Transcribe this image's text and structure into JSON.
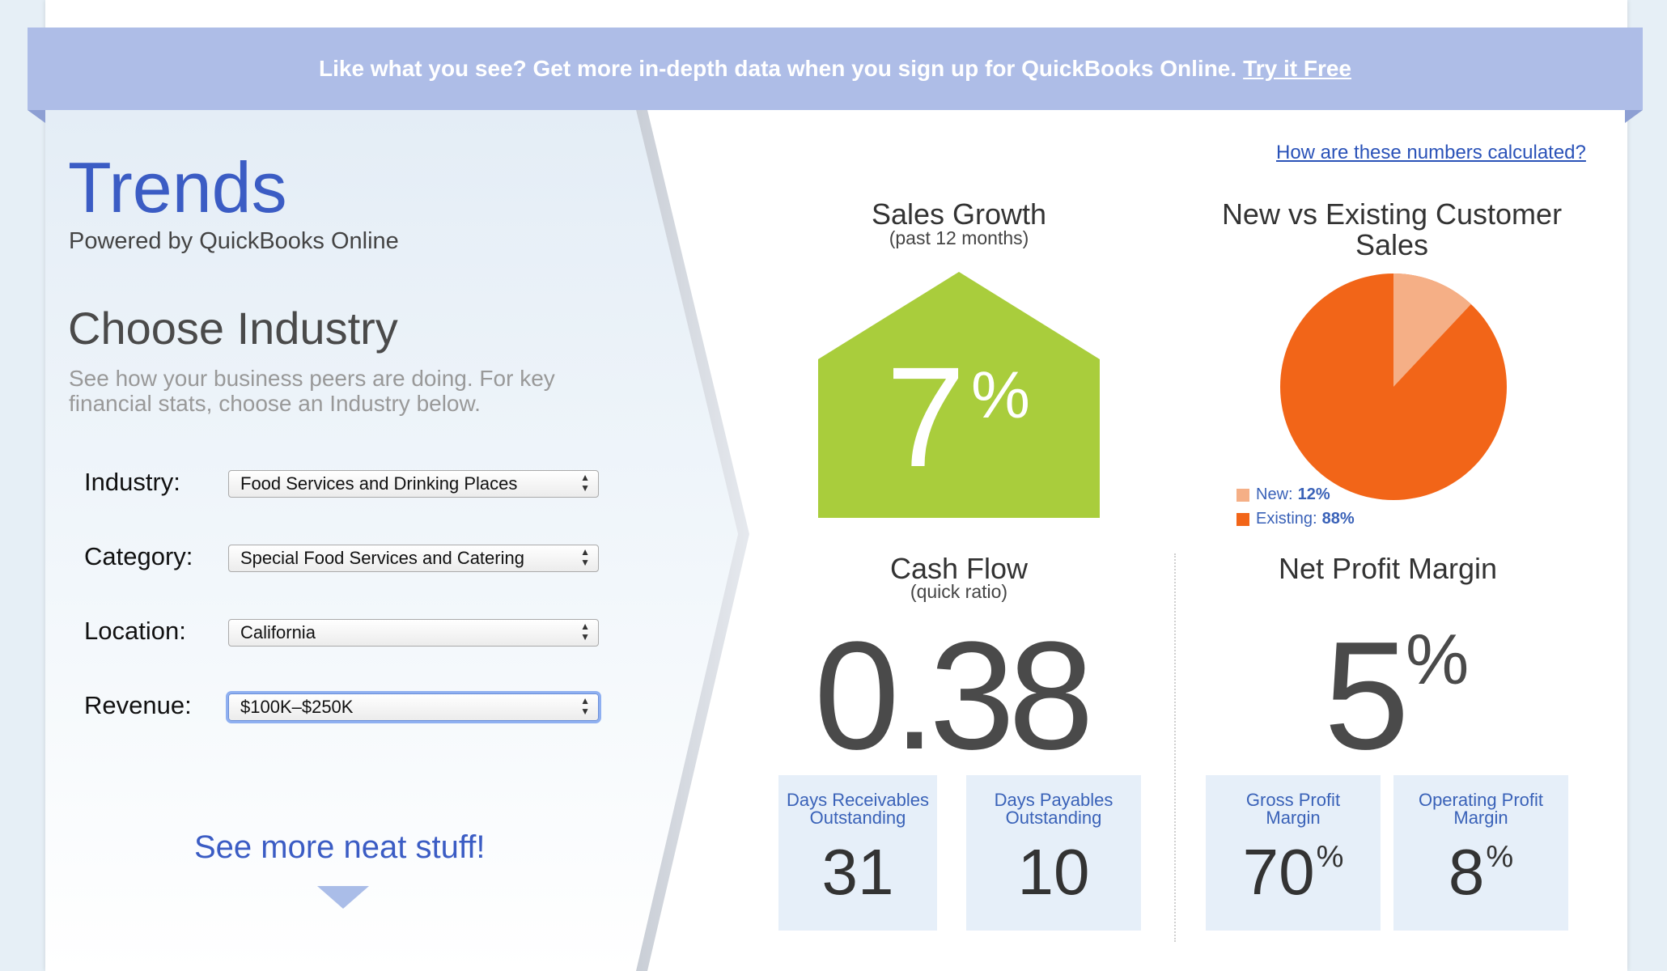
{
  "banner": {
    "text": "Like what you see? Get more in-depth data when you sign up for QuickBooks Online.",
    "link": "Try it Free",
    "color": "#aebde7"
  },
  "sidebar": {
    "title": "Trends",
    "subtitle": "Powered by QuickBooks Online",
    "choose_heading": "Choose Industry",
    "choose_desc": "See how your business peers are doing. For key financial stats, choose an Industry below.",
    "fields": [
      {
        "label": "Industry:",
        "value": "Food Services and Drinking Places"
      },
      {
        "label": "Category:",
        "value": "Special Food Services and Catering"
      },
      {
        "label": "Location:",
        "value": "California"
      },
      {
        "label": "Revenue:",
        "value": "$100K–$250K"
      }
    ],
    "see_more": "See more neat stuff!"
  },
  "calc_link": "How are these numbers calculated?",
  "sales_growth": {
    "title": "Sales Growth",
    "sub": "(past 12 months)",
    "value": "7",
    "unit": "%",
    "color": "#a9cd3c"
  },
  "customer_sales": {
    "title_line1": "New vs Existing Customer",
    "title_line2": "Sales",
    "new_label": "New:",
    "new_value": "12%",
    "new_fraction": 0.12,
    "new_color": "#f5af86",
    "existing_label": "Existing:",
    "existing_value": "88%",
    "existing_fraction": 0.88,
    "existing_color": "#f26518"
  },
  "cash_flow": {
    "title": "Cash Flow",
    "sub": "(quick ratio)",
    "value": "0.38",
    "boxes": [
      {
        "label_line1": "Days Receivables",
        "label_line2": "Outstanding",
        "value": "31"
      },
      {
        "label_line1": "Days Payables",
        "label_line2": "Outstanding",
        "value": "10"
      }
    ]
  },
  "net_profit": {
    "title": "Net Profit Margin",
    "value": "5",
    "unit": "%",
    "boxes": [
      {
        "label_line1": "Gross Profit",
        "label_line2": "Margin",
        "value": "70",
        "unit": "%"
      },
      {
        "label_line1": "Operating Profit",
        "label_line2": "Margin",
        "value": "8",
        "unit": "%"
      }
    ]
  }
}
